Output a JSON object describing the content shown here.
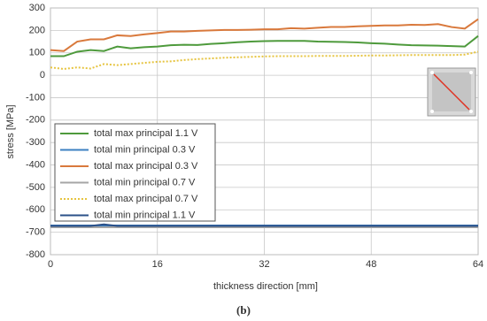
{
  "chart_data": {
    "type": "line",
    "x_label": "thickness direction [mm]",
    "y_label": "stress [MPa]",
    "caption": "(b)",
    "xlim": [
      0,
      64
    ],
    "xticks": [
      0,
      16,
      32,
      48,
      64
    ],
    "ylim": [
      -800,
      300
    ],
    "yticks": [
      300,
      200,
      100,
      0,
      -100,
      -200,
      -300,
      -400,
      -500,
      -600,
      -700,
      -800
    ],
    "grid": true,
    "legend": "left",
    "x": [
      0,
      2,
      4,
      6,
      8,
      10,
      12,
      14,
      16,
      18,
      20,
      22,
      24,
      26,
      28,
      30,
      32,
      34,
      36,
      38,
      40,
      42,
      44,
      46,
      48,
      50,
      52,
      54,
      56,
      58,
      60,
      62,
      64
    ],
    "series": [
      {
        "name": "total max principal 1.1 V",
        "color": "#4e9a3c",
        "line_style": "solid",
        "values": [
          85,
          85,
          105,
          112,
          108,
          128,
          120,
          125,
          128,
          134,
          136,
          135,
          140,
          143,
          147,
          150,
          152,
          153,
          153,
          153,
          150,
          149,
          148,
          146,
          143,
          141,
          137,
          134,
          133,
          132,
          130,
          128,
          175
        ]
      },
      {
        "name": "total min principal 0.3 V",
        "color": "#3c80c2",
        "line_style": "solid",
        "values": [
          -670,
          -670,
          -670,
          -670,
          -670,
          -670,
          -670,
          -670,
          -670,
          -670,
          -670,
          -670,
          -670,
          -670,
          -670,
          -670,
          -670,
          -670,
          -670,
          -670,
          -670,
          -670,
          -670,
          -670,
          -670,
          -670,
          -670,
          -670,
          -670,
          -670,
          -670,
          -670,
          -670
        ]
      },
      {
        "name": "total max principal 0.3 V",
        "color": "#d9793c",
        "line_style": "solid",
        "values": [
          112,
          108,
          150,
          160,
          160,
          178,
          175,
          182,
          188,
          195,
          195,
          198,
          200,
          202,
          202,
          203,
          205,
          205,
          210,
          208,
          212,
          215,
          215,
          218,
          220,
          222,
          222,
          225,
          224,
          228,
          215,
          208,
          250
        ]
      },
      {
        "name": "total min principal 0.7 V",
        "color": "#a6a6a6",
        "line_style": "solid",
        "values": [
          -678,
          -678,
          -678,
          -678,
          -678,
          -678,
          -678,
          -678,
          -678,
          -678,
          -678,
          -678,
          -678,
          -678,
          -678,
          -678,
          -678,
          -678,
          -678,
          -678,
          -678,
          -678,
          -678,
          -678,
          -678,
          -678,
          -678,
          -678,
          -678,
          -678,
          -678,
          -678,
          -678
        ]
      },
      {
        "name": "total max principal 0.7 V",
        "color": "#e6c440",
        "line_style": "dotted",
        "values": [
          35,
          28,
          35,
          30,
          50,
          45,
          50,
          55,
          60,
          62,
          68,
          72,
          75,
          78,
          80,
          82,
          84,
          85,
          85,
          85,
          86,
          86,
          86,
          87,
          88,
          88,
          89,
          90,
          90,
          90,
          90,
          92,
          105
        ]
      },
      {
        "name": "total min principal 1.1 V",
        "color": "#2b5088",
        "line_style": "solid",
        "values": [
          -672,
          -672,
          -672,
          -672,
          -665,
          -672,
          -672,
          -672,
          -672,
          -672,
          -672,
          -672,
          -672,
          -672,
          -672,
          -672,
          -672,
          -672,
          -672,
          -672,
          -672,
          -672,
          -672,
          -672,
          -672,
          -672,
          -672,
          -672,
          -672,
          -672,
          -672,
          -672,
          -672
        ]
      }
    ]
  }
}
